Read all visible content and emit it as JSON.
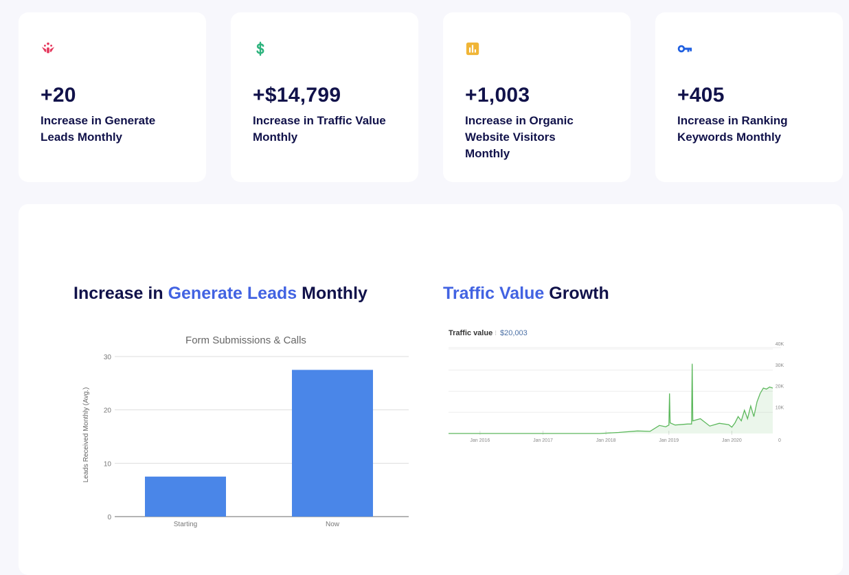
{
  "cards": [
    {
      "icon": "people-leads-icon",
      "value": "+20",
      "label": "Increase in Generate Leads Monthly",
      "color": "#e5385d"
    },
    {
      "icon": "dollar-icon",
      "value": "+$14,799",
      "label": "Increase in Traffic Value Monthly",
      "color": "#2db37d"
    },
    {
      "icon": "bar-chart-icon",
      "value": "+1,003",
      "label": "Increase in Organic Website Visitors Monthly",
      "color": "#f0b536"
    },
    {
      "icon": "key-icon",
      "value": "+405",
      "label": "Increase in Ranking Keywords Monthly",
      "color": "#1f5fe0"
    }
  ],
  "headings": {
    "leads": {
      "pre": "Increase in ",
      "accent": "Generate Leads",
      "post": " Monthly"
    },
    "traffic": {
      "accent": "Traffic Value",
      "post": " Growth"
    }
  },
  "chart_data": [
    {
      "type": "bar",
      "title": "Form Submissions & Calls",
      "xlabel": "",
      "ylabel": "Leads Received Monthly (Avg.)",
      "categories": [
        "Starting",
        "Now"
      ],
      "values": [
        7.5,
        27.5
      ],
      "ylim": [
        0,
        30
      ],
      "yticks": [
        0,
        10,
        20,
        30
      ],
      "grid": true,
      "color": "#4a86e8"
    },
    {
      "type": "area",
      "title": "Traffic value",
      "summary": "$20,003",
      "xticks": [
        "Jan 2016",
        "Jan 2017",
        "Jan 2018",
        "Jan 2019",
        "Jan 2020"
      ],
      "yticks": [
        "0",
        "10K",
        "20K",
        "30K",
        "40K"
      ],
      "ylim": [
        0,
        40000
      ],
      "xlim": [
        2015.5,
        2020.65
      ],
      "grid": true,
      "color": "#5cb85c",
      "x": [
        2015.5,
        2017.9,
        2018.2,
        2018.5,
        2018.7,
        2018.85,
        2018.95,
        2019.0,
        2019.01,
        2019.02,
        2019.1,
        2019.3,
        2019.36,
        2019.37,
        2019.38,
        2019.5,
        2019.65,
        2019.8,
        2019.95,
        2020.0,
        2020.05,
        2020.1,
        2020.15,
        2020.2,
        2020.25,
        2020.3,
        2020.35,
        2020.4,
        2020.45,
        2020.5,
        2020.55,
        2020.6,
        2020.65
      ],
      "y": [
        0,
        0,
        500,
        1200,
        1000,
        3800,
        3200,
        4000,
        19000,
        5000,
        4000,
        4500,
        4500,
        33000,
        6000,
        7000,
        3500,
        4800,
        4200,
        3000,
        5000,
        8000,
        6000,
        11000,
        7000,
        13000,
        8000,
        15000,
        19000,
        21500,
        21000,
        22000,
        21500
      ]
    }
  ]
}
